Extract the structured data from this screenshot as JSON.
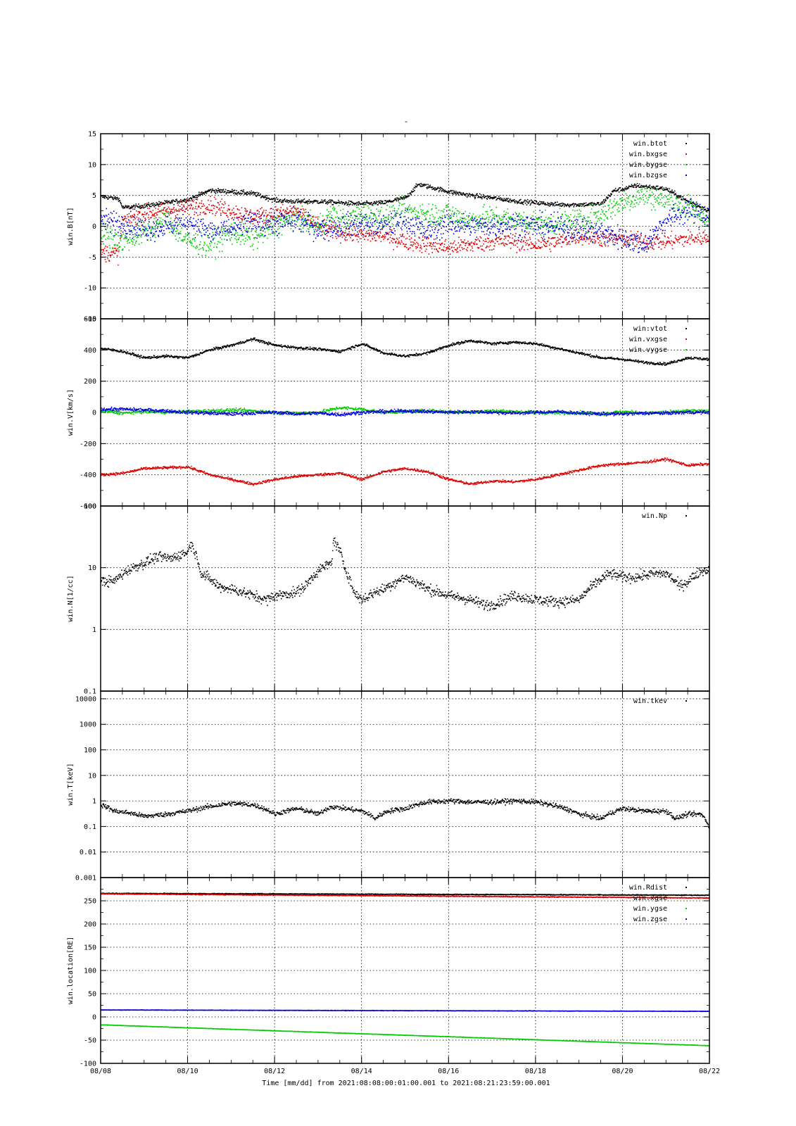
{
  "figure": {
    "title": "-",
    "xlabel": "Time [mm/dd]  from 2021:08:08:00:01:00.001  to  2021:08:21:23:59:00.001"
  },
  "chart_data": [
    {
      "type": "scatter",
      "ylabel": "win.B[nT]",
      "yscale": "linear",
      "ylim": [
        -15,
        15
      ],
      "yticks": [
        -15,
        -10,
        -5,
        0,
        5,
        10,
        15
      ],
      "ytick_labels": [
        "-15",
        "-10",
        "-5",
        "0",
        "5",
        "10",
        "15"
      ],
      "xlim": [
        "08/08",
        "08/22"
      ],
      "xticks": [
        "08/08",
        "08/10",
        "08/12",
        "08/14",
        "08/16",
        "08/18",
        "08/20",
        "08/22"
      ],
      "grid": true,
      "legend_position": "top-right",
      "series": [
        {
          "name": "win.btot",
          "color": "#000000",
          "noise": 0.35,
          "x": [
            8.0,
            8.4,
            8.5,
            9.0,
            9.5,
            10.0,
            10.5,
            11.0,
            11.5,
            12.0,
            12.5,
            13.0,
            13.5,
            14.0,
            14.5,
            15.0,
            15.3,
            15.6,
            16.0,
            16.5,
            17.0,
            17.5,
            18.0,
            18.5,
            19.0,
            19.5,
            19.8,
            20.0,
            20.3,
            20.7,
            21.0,
            21.5,
            22.0
          ],
          "y": [
            4.8,
            4.5,
            3.0,
            3.3,
            3.8,
            4.3,
            5.8,
            5.6,
            5.3,
            4.2,
            4.0,
            4.0,
            3.8,
            3.6,
            3.8,
            4.6,
            6.8,
            6.3,
            5.6,
            5.0,
            4.6,
            4.1,
            3.8,
            3.5,
            3.5,
            3.6,
            5.8,
            6.0,
            6.6,
            6.3,
            6.0,
            4.0,
            2.5
          ]
        },
        {
          "name": "win.bxgse",
          "color": "#dd0000",
          "noise": 1.3,
          "x": [
            8.0,
            8.4,
            8.5,
            9.0,
            9.5,
            10.0,
            10.5,
            11.0,
            11.5,
            12.0,
            12.5,
            13.0,
            13.5,
            14.0,
            14.5,
            15.0,
            15.5,
            16.0,
            16.5,
            17.0,
            17.5,
            18.0,
            18.5,
            19.0,
            19.5,
            20.0,
            20.5,
            21.0,
            21.5,
            22.0
          ],
          "y": [
            -4.2,
            -4.5,
            1.0,
            2.0,
            2.5,
            3.0,
            3.5,
            2.5,
            1.5,
            2.0,
            2.5,
            0.0,
            -1.0,
            -1.5,
            -1.5,
            -2.5,
            -3.0,
            -3.5,
            -3.0,
            -2.5,
            -2.5,
            -3.0,
            -2.5,
            -1.5,
            -2.0,
            -2.0,
            -2.5,
            -2.5,
            -2.0,
            -1.8
          ]
        },
        {
          "name": "win.bygse",
          "color": "#00cc00",
          "noise": 1.8,
          "x": [
            8.0,
            8.5,
            9.0,
            9.5,
            10.0,
            10.5,
            11.0,
            11.5,
            12.0,
            12.5,
            13.0,
            13.3,
            13.6,
            14.0,
            14.5,
            15.0,
            15.5,
            16.0,
            16.5,
            17.0,
            17.5,
            18.0,
            18.5,
            19.0,
            19.5,
            20.0,
            20.5,
            21.0,
            21.5,
            22.0
          ],
          "y": [
            -1.0,
            -2.5,
            -1.0,
            1.0,
            -2.5,
            -3.0,
            -1.0,
            -2.0,
            0.0,
            1.5,
            0.0,
            2.0,
            1.0,
            2.0,
            1.5,
            2.5,
            2.0,
            2.0,
            1.0,
            1.5,
            1.0,
            0.5,
            0.5,
            1.0,
            2.0,
            4.0,
            5.0,
            4.0,
            3.0,
            1.0
          ]
        },
        {
          "name": "win.bzgse",
          "color": "#0000dd",
          "noise": 1.8,
          "x": [
            8.0,
            8.5,
            9.0,
            9.5,
            10.0,
            10.5,
            11.0,
            11.5,
            12.0,
            12.5,
            13.0,
            13.5,
            14.0,
            14.5,
            15.0,
            15.5,
            16.0,
            16.5,
            17.0,
            17.5,
            18.0,
            18.5,
            19.0,
            19.5,
            20.0,
            20.5,
            21.0,
            21.5,
            22.0
          ],
          "y": [
            1.0,
            0.5,
            -0.5,
            0.0,
            1.0,
            -1.0,
            -0.5,
            0.5,
            0.5,
            1.0,
            -0.5,
            0.0,
            0.5,
            0.0,
            1.0,
            -1.0,
            0.5,
            0.0,
            0.0,
            0.5,
            0.0,
            0.0,
            -0.5,
            -1.0,
            -2.0,
            -3.0,
            1.0,
            2.5,
            1.5
          ]
        }
      ]
    },
    {
      "type": "scatter",
      "ylabel": "win.V[km/s]",
      "yscale": "linear",
      "ylim": [
        -600,
        600
      ],
      "yticks": [
        -600,
        -400,
        -200,
        0,
        200,
        400,
        600
      ],
      "ytick_labels": [
        "-600",
        "-400",
        "-200",
        "0",
        "200",
        "400",
        "600"
      ],
      "xlim": [
        "08/08",
        "08/22"
      ],
      "xticks": [
        "08/08",
        "08/10",
        "08/12",
        "08/14",
        "08/16",
        "08/18",
        "08/20",
        "08/22"
      ],
      "grid": true,
      "legend_position": "top-right",
      "series": [
        {
          "name": "win:vtot",
          "color": "#000000",
          "noise": 8,
          "x": [
            8.0,
            8.5,
            9.0,
            9.5,
            10.0,
            10.5,
            11.0,
            11.5,
            12.0,
            12.5,
            13.0,
            13.5,
            14.0,
            14.5,
            15.0,
            15.5,
            16.0,
            16.5,
            17.0,
            17.5,
            18.0,
            18.5,
            19.0,
            19.5,
            20.0,
            20.5,
            21.0,
            21.5,
            22.0
          ],
          "y": [
            410,
            390,
            350,
            360,
            350,
            400,
            430,
            470,
            430,
            415,
            405,
            390,
            440,
            380,
            360,
            380,
            430,
            460,
            440,
            450,
            440,
            410,
            380,
            350,
            340,
            320,
            310,
            350,
            340
          ]
        },
        {
          "name": "win.vxgse",
          "color": "#dd0000",
          "noise": 8,
          "x": [
            8.0,
            8.5,
            9.0,
            9.5,
            10.0,
            10.5,
            11.0,
            11.5,
            12.0,
            12.5,
            13.0,
            13.5,
            14.0,
            14.5,
            15.0,
            15.5,
            16.0,
            16.5,
            17.0,
            17.5,
            18.0,
            18.5,
            19.0,
            19.5,
            20.0,
            20.5,
            21.0,
            21.5,
            22.0
          ],
          "y": [
            -400,
            -390,
            -360,
            -355,
            -350,
            -400,
            -430,
            -460,
            -430,
            -410,
            -400,
            -390,
            -430,
            -380,
            -360,
            -380,
            -430,
            -460,
            -440,
            -445,
            -430,
            -400,
            -370,
            -340,
            -330,
            -320,
            -300,
            -340,
            -330
          ]
        },
        {
          "name": "win.vygse",
          "color": "#00cc00",
          "noise": 10,
          "x": [
            8.0,
            8.5,
            9.0,
            9.5,
            10.0,
            10.5,
            11.0,
            11.5,
            12.0,
            12.5,
            13.0,
            13.5,
            14.0,
            14.5,
            15.0,
            15.5,
            16.0,
            16.5,
            17.0,
            17.5,
            18.0,
            18.5,
            19.0,
            19.5,
            20.0,
            20.5,
            21.0,
            21.5,
            22.0
          ],
          "y": [
            10,
            -5,
            5,
            0,
            5,
            10,
            15,
            10,
            0,
            -5,
            0,
            30,
            20,
            0,
            5,
            10,
            5,
            0,
            10,
            5,
            0,
            -5,
            0,
            -10,
            5,
            -5,
            0,
            10,
            5
          ]
        },
        {
          "name": "",
          "color": "#0000dd",
          "noise": 10,
          "x": [
            8.0,
            8.5,
            9.0,
            9.5,
            10.0,
            10.5,
            11.0,
            11.5,
            12.0,
            12.5,
            13.0,
            13.5,
            14.0,
            14.5,
            15.0,
            15.5,
            16.0,
            16.5,
            17.0,
            17.5,
            18.0,
            18.5,
            19.0,
            19.5,
            20.0,
            20.5,
            21.0,
            21.5,
            22.0
          ],
          "y": [
            20,
            20,
            15,
            10,
            0,
            -5,
            -10,
            -5,
            0,
            -10,
            -5,
            -15,
            0,
            5,
            10,
            5,
            0,
            5,
            0,
            -5,
            0,
            5,
            -5,
            -10,
            -10,
            -5,
            -5,
            0,
            0
          ]
        }
      ]
    },
    {
      "type": "scatter",
      "ylabel": "win.N[1/cc]",
      "yscale": "log",
      "ylim": [
        0.1,
        100
      ],
      "yticks": [
        0.1,
        1,
        10,
        100
      ],
      "ytick_labels": [
        "0.1",
        "1",
        "10",
        "100"
      ],
      "xlim": [
        "08/08",
        "08/22"
      ],
      "xticks": [
        "08/08",
        "08/10",
        "08/12",
        "08/14",
        "08/16",
        "08/18",
        "08/20",
        "08/22"
      ],
      "grid": true,
      "legend_position": "top-right",
      "series": [
        {
          "name": "win.Np",
          "color": "#000000",
          "noise": 0.08,
          "x": [
            8.0,
            8.3,
            8.6,
            9.0,
            9.3,
            9.6,
            10.0,
            10.05,
            10.3,
            10.7,
            11.0,
            11.5,
            11.8,
            12.0,
            12.5,
            12.7,
            13.0,
            13.3,
            13.35,
            13.6,
            13.8,
            14.0,
            14.3,
            14.5,
            15.0,
            15.5,
            16.0,
            16.5,
            16.8,
            17.0,
            17.5,
            18.0,
            18.5,
            19.0,
            19.3,
            19.7,
            20.0,
            20.3,
            20.7,
            21.0,
            21.3,
            21.5,
            21.8,
            22.0
          ],
          "y": [
            6,
            6,
            9,
            12,
            15,
            14,
            18,
            25,
            8,
            5,
            4.5,
            3.5,
            3.0,
            3.5,
            4,
            5,
            9,
            12,
            28,
            10,
            4,
            3,
            4,
            4.5,
            7,
            4.5,
            3.5,
            3,
            2.5,
            2.5,
            3.5,
            3,
            2.8,
            3,
            5,
            8,
            7,
            7,
            8,
            8,
            5,
            6,
            9,
            9
          ]
        }
      ]
    },
    {
      "type": "scatter",
      "ylabel": "win.T[keV]",
      "yscale": "log",
      "ylim": [
        0.001,
        20000
      ],
      "yticks": [
        0.001,
        0.01,
        0.1,
        1,
        10,
        100,
        1000,
        10000
      ],
      "ytick_labels": [
        "0.001",
        "0.01",
        "0.1",
        "1",
        "10",
        "100",
        "1000",
        "10000"
      ],
      "xlim": [
        "08/08",
        "08/22"
      ],
      "xticks": [
        "08/08",
        "08/10",
        "08/12",
        "08/14",
        "08/16",
        "08/18",
        "08/20",
        "08/22"
      ],
      "grid": true,
      "legend_position": "top-right",
      "series": [
        {
          "name": "win.tkev",
          "color": "#000000",
          "noise": 0.09,
          "x": [
            8.0,
            8.3,
            8.6,
            9.0,
            9.5,
            10.0,
            10.5,
            11.0,
            11.5,
            12.0,
            12.5,
            13.0,
            13.3,
            13.6,
            14.0,
            14.3,
            14.6,
            15.0,
            15.5,
            16.0,
            16.5,
            17.0,
            17.5,
            18.0,
            18.5,
            19.0,
            19.5,
            20.0,
            20.5,
            21.0,
            21.2,
            21.5,
            21.8,
            22.0
          ],
          "y": [
            0.7,
            0.4,
            0.35,
            0.25,
            0.3,
            0.4,
            0.6,
            0.8,
            0.7,
            0.3,
            0.5,
            0.3,
            0.6,
            0.5,
            0.4,
            0.2,
            0.4,
            0.5,
            0.9,
            1.0,
            0.9,
            0.9,
            1.0,
            0.9,
            0.6,
            0.3,
            0.2,
            0.5,
            0.4,
            0.4,
            0.2,
            0.3,
            0.3,
            0.07
          ]
        }
      ]
    },
    {
      "type": "scatter",
      "ylabel": "win.location[RE]",
      "yscale": "linear",
      "ylim": [
        -100,
        300
      ],
      "yticks": [
        -100,
        -50,
        0,
        50,
        100,
        150,
        200,
        250
      ],
      "ytick_labels": [
        "-100",
        "-50",
        "0",
        "50",
        "100",
        "150",
        "200",
        "250"
      ],
      "xlim": [
        "08/08",
        "08/22"
      ],
      "xticks": [
        "08/08",
        "08/10",
        "08/12",
        "08/14",
        "08/16",
        "08/18",
        "08/20",
        "08/22"
      ],
      "xtick_labels": [
        "08/08",
        "08/10",
        "08/12",
        "08/14",
        "08/16",
        "08/18",
        "08/20",
        "08/22"
      ],
      "grid": true,
      "legend_position": "top-right",
      "series": [
        {
          "name": "win.Rdist",
          "color": "#000000",
          "noise": 0.8,
          "x": [
            8,
            22
          ],
          "y": [
            266,
            262
          ]
        },
        {
          "name": "win.xgse",
          "color": "#dd0000",
          "noise": 0.8,
          "x": [
            8,
            22
          ],
          "y": [
            265,
            256
          ]
        },
        {
          "name": "win.ygse",
          "color": "#00cc00",
          "noise": 0.4,
          "x": [
            8,
            22
          ],
          "y": [
            -17,
            -62
          ]
        },
        {
          "name": "win.zgse",
          "color": "#0000dd",
          "noise": 0.4,
          "x": [
            8,
            22
          ],
          "y": [
            15,
            12
          ]
        }
      ]
    }
  ]
}
